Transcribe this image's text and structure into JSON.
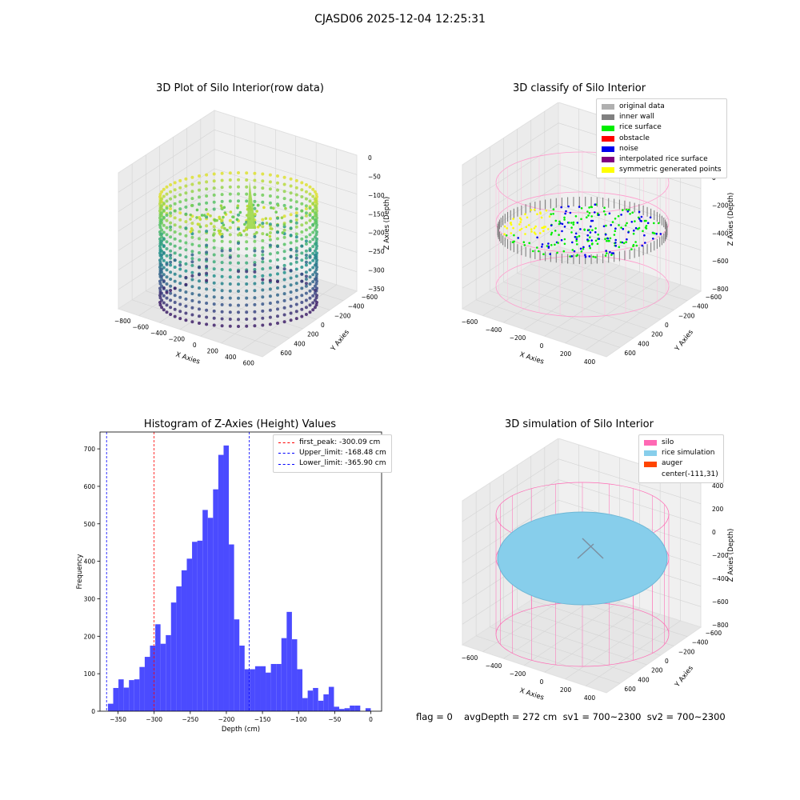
{
  "suptitle": "CJASD06 2025-12-04 12:25:31",
  "panels": {
    "raw": {
      "title": "3D Plot of Silo Interior(row data)",
      "xlabel": "X Axies",
      "ylabel": "Y Axies",
      "zlabel": "Z Axies (Depth)",
      "xticks": [
        "−800",
        "−600",
        "−400",
        "−200",
        "0",
        "200",
        "400",
        "600"
      ],
      "yticks": [
        "600",
        "400",
        "200",
        "0",
        "−200",
        "−400",
        "−600"
      ],
      "zticks": [
        "0",
        "−50",
        "−100",
        "−150",
        "−200",
        "−250",
        "−300",
        "−350"
      ]
    },
    "classify": {
      "title": "3D classify of Silo Interior",
      "xlabel": "X Axies",
      "ylabel": "Y Axies",
      "zlabel": "Z Axies (Depth)",
      "xticks": [
        "−600",
        "−400",
        "−200",
        "0",
        "200",
        "400"
      ],
      "yticks": [
        "600",
        "400",
        "200",
        "0",
        "−200",
        "−400",
        "−600"
      ],
      "zticks": [
        "200",
        "0",
        "−200",
        "−400",
        "−600",
        "−800"
      ],
      "legend": [
        {
          "label": "original data",
          "color": "#b0b0b0"
        },
        {
          "label": "inner wall",
          "color": "#808080"
        },
        {
          "label": "rice surface",
          "color": "#00ee00"
        },
        {
          "label": "obstacle",
          "color": "#ff0000"
        },
        {
          "label": "noise",
          "color": "#0000ee"
        },
        {
          "label": "interpolated rice surface",
          "color": "#800080"
        },
        {
          "label": "symmetric generated points",
          "color": "#ffff00"
        }
      ]
    },
    "simulation": {
      "title": "3D simulation of Silo Interior",
      "xlabel": "X Axies",
      "ylabel": "Y Axies",
      "zlabel": "Z Axies (Depth)",
      "xticks": [
        "−600",
        "−400",
        "−200",
        "0",
        "200",
        "400"
      ],
      "yticks": [
        "600",
        "400",
        "200",
        "0",
        "−200",
        "−400",
        "−600"
      ],
      "zticks": [
        "400",
        "200",
        "0",
        "−200",
        "−400",
        "−600",
        "−800"
      ],
      "legend": [
        {
          "label": "silo",
          "color": "#ff69b4"
        },
        {
          "label": "rice simulation",
          "color": "#87ceeb"
        },
        {
          "label": "auger",
          "color": "#ff4500"
        },
        {
          "label": "center(-111,31)",
          "color": ""
        }
      ]
    }
  },
  "footer": {
    "flag": "flag = 0",
    "avg": "avgDepth = 272 cm  sv1 = 700~2300  sv2 = 700~2300"
  },
  "chart_data": {
    "type": "bar",
    "title": "Histogram of Z-Axies (Height) Values",
    "xlabel": "Depth (cm)",
    "ylabel": "Frequency",
    "xlim": [
      -375,
      15
    ],
    "ylim": [
      0,
      745
    ],
    "xticks": [
      -350,
      -300,
      -250,
      -200,
      -150,
      -100,
      -50,
      0
    ],
    "yticks": [
      0,
      100,
      200,
      300,
      400,
      500,
      600,
      700
    ],
    "bin_start": -364,
    "bin_width": 7.28,
    "values": [
      20,
      62,
      85,
      63,
      83,
      85,
      118,
      145,
      175,
      232,
      180,
      203,
      290,
      333,
      376,
      407,
      452,
      455,
      537,
      516,
      592,
      684,
      709,
      445,
      245,
      175,
      112,
      112,
      120,
      120,
      103,
      126,
      126,
      195,
      265,
      192,
      112,
      35,
      55,
      62,
      28,
      45,
      65,
      12,
      6,
      8,
      15,
      15,
      0,
      8
    ],
    "vlines": [
      {
        "label": "first_peak: -300.09 cm",
        "x": -300.09,
        "color": "#ff0000"
      },
      {
        "label": "Upper_limit: -168.48 cm",
        "x": -168.48,
        "color": "#0000ff"
      },
      {
        "label": "Lower_limit: -365.90 cm",
        "x": -365.9,
        "color": "#0000ff"
      }
    ],
    "bar_color": "#4b4bff"
  }
}
